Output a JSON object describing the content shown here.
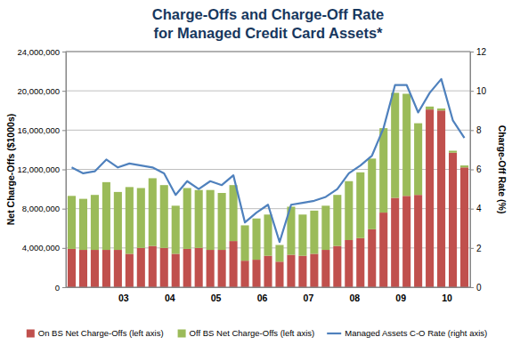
{
  "chart_data": {
    "type": "bar",
    "title": [
      "Charge-Offs and Charge-Off Rate",
      "for Managed Credit Card Assets*"
    ],
    "y_label": "Net Charge-Offs ($1000s)",
    "y2_label": "Charge-Off Rate (%)",
    "categories": [
      null,
      null,
      null,
      null,
      "03",
      null,
      null,
      null,
      "04",
      null,
      null,
      null,
      "05",
      null,
      null,
      null,
      "06",
      null,
      null,
      null,
      "07",
      null,
      null,
      null,
      "08",
      null,
      null,
      null,
      "09",
      null,
      null,
      null,
      "10",
      null,
      null
    ],
    "stacked": true,
    "grid": true,
    "legend": "bottom",
    "ylim": [
      0,
      24000000
    ],
    "yticks": [
      0,
      {
        "value": 4000000,
        "label": "4,000,000"
      },
      {
        "value": 8000000,
        "label": "8,000,000"
      },
      {
        "value": 12000000,
        "label": "12,000,000"
      },
      {
        "value": 16000000,
        "label": "16,000,000"
      },
      {
        "value": 20000000,
        "label": "20,000,000"
      },
      {
        "value": 24000000,
        "label": "24,000,000"
      }
    ],
    "y2lim": [
      0,
      12
    ],
    "y2ticks": [
      0,
      2,
      4,
      6,
      8,
      10,
      12
    ],
    "series": [
      {
        "name": "On BS Net Charge-Offs (left axis)",
        "type": "bar",
        "color": "#c0504d",
        "values": [
          3900000,
          3800000,
          3800000,
          3800000,
          3800000,
          3400000,
          4000000,
          4200000,
          4000000,
          3400000,
          3900000,
          4000000,
          3800000,
          3800000,
          4700000,
          2700000,
          2800000,
          3200000,
          2600000,
          3300000,
          3200000,
          3400000,
          3800000,
          4200000,
          4800000,
          5000000,
          5900000,
          7600000,
          9100000,
          9300000,
          9400000,
          18100000,
          18000000,
          13700000,
          12200000
        ]
      },
      {
        "name": "Off BS Net Charge-Offs (left axis)",
        "type": "bar",
        "color": "#9bbb59",
        "values": [
          5400000,
          5200000,
          5600000,
          6900000,
          5900000,
          6800000,
          6100000,
          6900000,
          6400000,
          4900000,
          6200000,
          5900000,
          6100000,
          5800000,
          5700000,
          3600000,
          4200000,
          4200000,
          1700000,
          4900000,
          4200000,
          4400000,
          4500000,
          5200000,
          6000000,
          6700000,
          7200000,
          8600000,
          10700000,
          10400000,
          7300000,
          300000,
          200000,
          200000,
          200000
        ]
      },
      {
        "name": "Managed Assets C-O Rate (right axis)",
        "type": "line",
        "axis": "y2",
        "color": "#4f81bd",
        "values": [
          6.1,
          5.8,
          5.9,
          6.5,
          6.1,
          6.3,
          6.2,
          6.1,
          5.8,
          4.7,
          5.4,
          5.0,
          5.4,
          5.2,
          5.7,
          3.3,
          3.8,
          4.2,
          2.3,
          4.2,
          4.3,
          4.4,
          4.6,
          5.0,
          5.8,
          6.2,
          6.7,
          8.1,
          10.3,
          10.3,
          8.9,
          9.9,
          10.6,
          8.5,
          7.6
        ]
      }
    ]
  }
}
